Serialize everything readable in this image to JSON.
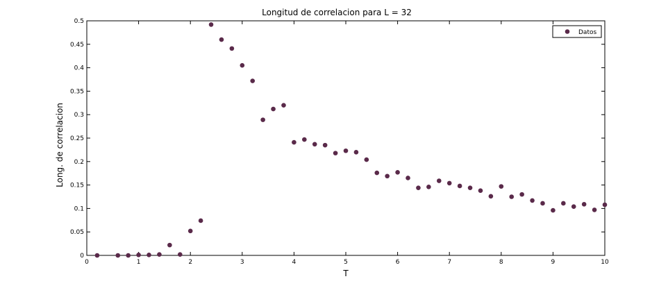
{
  "chart_data": {
    "type": "scatter",
    "title": "Longitud de correlacion  para  L =  32",
    "xlabel": "T",
    "ylabel": "Long. de correlacion",
    "xlim": [
      0,
      10
    ],
    "ylim": [
      0,
      0.5
    ],
    "xticks": [
      "0",
      "1",
      "2",
      "3",
      "4",
      "5",
      "6",
      "7",
      "8",
      "9",
      "10"
    ],
    "yticks": [
      "0",
      "0.05",
      "0.1",
      "0.15",
      "0.2",
      "0.25",
      "0.3",
      "0.35",
      "0.4",
      "0.45",
      "0.5"
    ],
    "grid": false,
    "legend_position": "top-right",
    "marker_color": "#5a2a4a",
    "series": [
      {
        "name": "Datos",
        "x": [
          0.2,
          0.6,
          0.8,
          1.0,
          1.2,
          1.4,
          1.6,
          1.8,
          2.0,
          2.2,
          2.4,
          2.6,
          2.8,
          3.0,
          3.2,
          3.4,
          3.6,
          3.8,
          4.0,
          4.2,
          4.4,
          4.6,
          4.8,
          5.0,
          5.2,
          5.4,
          5.6,
          5.8,
          6.0,
          6.2,
          6.4,
          6.6,
          6.8,
          7.0,
          7.2,
          7.4,
          7.6,
          7.8,
          8.0,
          8.2,
          8.4,
          8.6,
          8.8,
          9.0,
          9.2,
          9.4,
          9.6,
          9.8,
          10.0
        ],
        "y": [
          0,
          0,
          0,
          0.001,
          0.001,
          0.002,
          0.022,
          0.002,
          0.052,
          0.074,
          0.492,
          0.46,
          0.441,
          0.405,
          0.372,
          0.289,
          0.312,
          0.32,
          0.241,
          0.247,
          0.237,
          0.235,
          0.218,
          0.223,
          0.22,
          0.204,
          0.176,
          0.169,
          0.177,
          0.165,
          0.144,
          0.146,
          0.159,
          0.154,
          0.148,
          0.144,
          0.138,
          0.126,
          0.147,
          0.125,
          0.13,
          0.117,
          0.111,
          0.096,
          0.111,
          0.104,
          0.109,
          0.097,
          0.108
        ]
      }
    ]
  }
}
